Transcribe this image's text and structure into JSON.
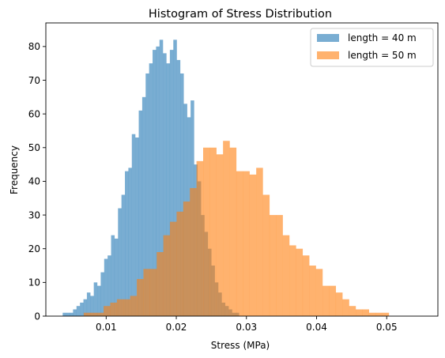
{
  "chart_data": {
    "type": "bar",
    "title": "Histogram of Stress Distribution",
    "xlabel": "Stress (MPa)",
    "ylabel": "Frequency",
    "xlim": [
      0.0014,
      0.0573
    ],
    "ylim": [
      0,
      87
    ],
    "x_ticks": [
      0.01,
      0.02,
      0.03,
      0.04,
      0.05
    ],
    "x_tick_labels": [
      "0.01",
      "0.02",
      "0.03",
      "0.04",
      "0.05"
    ],
    "y_ticks": [
      0,
      10,
      20,
      30,
      40,
      50,
      60,
      70,
      80
    ],
    "y_tick_labels": [
      "0",
      "10",
      "20",
      "30",
      "40",
      "50",
      "60",
      "70",
      "80"
    ],
    "legend_position": "top-right",
    "grid": false,
    "series": [
      {
        "name": "length = 40 m",
        "color": "#1f77b4",
        "opacity": 0.6,
        "bin_start": 0.0038,
        "bin_width": 0.000493,
        "counts": [
          1,
          1,
          1,
          2,
          3,
          4,
          5,
          7,
          6,
          10,
          9,
          13,
          17,
          18,
          24,
          23,
          32,
          36,
          43,
          44,
          54,
          53,
          61,
          65,
          72,
          75,
          79,
          80,
          82,
          78,
          75,
          79,
          82,
          76,
          72,
          63,
          59,
          64,
          45,
          40,
          30,
          25,
          20,
          15,
          10,
          7,
          4,
          3,
          2,
          1,
          1
        ]
      },
      {
        "name": "length = 50 m",
        "color": "#ff7f0e",
        "opacity": 0.6,
        "bin_start": 0.0068,
        "bin_width": 0.000946,
        "counts": [
          1,
          1,
          1,
          3,
          4,
          5,
          5,
          6,
          11,
          14,
          14,
          19,
          24,
          28,
          31,
          34,
          38,
          46,
          50,
          50,
          48,
          52,
          50,
          43,
          43,
          42,
          44,
          36,
          30,
          30,
          24,
          21,
          20,
          18,
          15,
          14,
          9,
          9,
          7,
          5,
          3,
          2,
          2,
          1,
          1,
          1
        ]
      }
    ]
  }
}
